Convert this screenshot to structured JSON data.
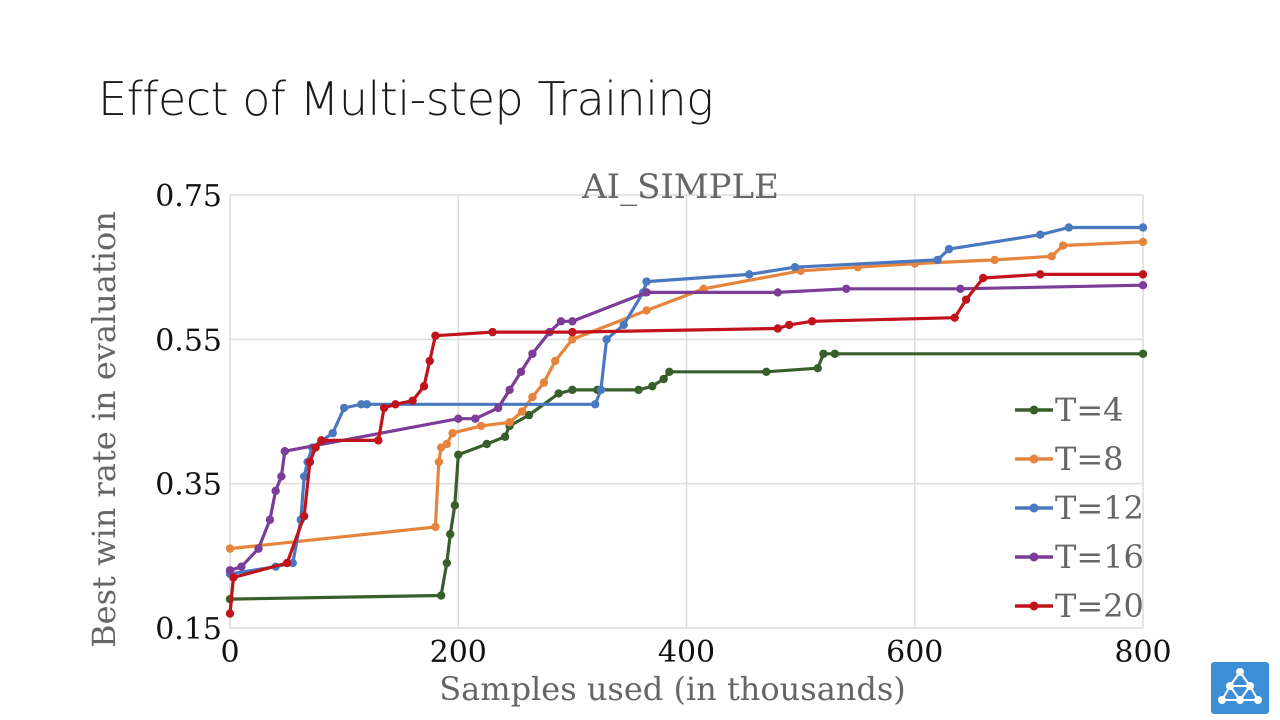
{
  "slide": {
    "title": "Effect of Multi-step Training"
  },
  "logo": {
    "icon": "network-logo-icon",
    "color": "#3c8fd6"
  },
  "chart_data": {
    "type": "line",
    "title": "AI_SIMPLE",
    "xlabel": "Samples used (in thousands)",
    "ylabel": "Best win rate in evaluation",
    "xlim": [
      0,
      800
    ],
    "ylim": [
      0.15,
      0.75
    ],
    "xticks": [
      0,
      200,
      400,
      600,
      800
    ],
    "xtick_labels": [
      "0",
      "200",
      "400",
      "600",
      "800"
    ],
    "yticks": [
      0.15,
      0.35,
      0.55,
      0.75
    ],
    "ytick_labels": [
      "0.15",
      "0.35",
      "0.55",
      "0.75"
    ],
    "grid": true,
    "legend_position": "bottom-right",
    "series": [
      {
        "name": "T=4",
        "color": "#375e2b",
        "x": [
          0,
          185,
          190,
          193,
          197,
          200,
          225,
          241,
          245,
          262,
          288,
          300,
          322,
          358,
          370,
          380,
          385,
          470,
          515,
          520,
          530,
          800
        ],
        "y": [
          0.19,
          0.195,
          0.24,
          0.28,
          0.32,
          0.39,
          0.405,
          0.415,
          0.43,
          0.445,
          0.475,
          0.48,
          0.48,
          0.48,
          0.485,
          0.495,
          0.505,
          0.505,
          0.51,
          0.53,
          0.53,
          0.53
        ]
      },
      {
        "name": "T=8",
        "color": "#e5853d",
        "x": [
          0,
          180,
          183,
          185,
          190,
          195,
          220,
          245,
          256,
          265,
          275,
          285,
          300,
          365,
          415,
          500,
          550,
          600,
          670,
          720,
          730,
          800
        ],
        "y": [
          0.26,
          0.29,
          0.38,
          0.4,
          0.405,
          0.42,
          0.43,
          0.435,
          0.45,
          0.47,
          0.49,
          0.52,
          0.55,
          0.59,
          0.62,
          0.645,
          0.65,
          0.655,
          0.66,
          0.665,
          0.68,
          0.685
        ]
      },
      {
        "name": "T=12",
        "color": "#4a78c0",
        "x": [
          0,
          40,
          55,
          62,
          65,
          68,
          72,
          90,
          100,
          115,
          120,
          320,
          325,
          330,
          345,
          362,
          365,
          455,
          495,
          620,
          630,
          710,
          735,
          800
        ],
        "y": [
          0.225,
          0.235,
          0.24,
          0.3,
          0.36,
          0.38,
          0.4,
          0.42,
          0.455,
          0.46,
          0.46,
          0.46,
          0.48,
          0.55,
          0.57,
          0.615,
          0.63,
          0.64,
          0.65,
          0.66,
          0.675,
          0.695,
          0.705,
          0.705
        ]
      },
      {
        "name": "T=16",
        "color": "#7b3d97",
        "x": [
          0,
          10,
          25,
          35,
          40,
          45,
          48,
          200,
          215,
          235,
          245,
          255,
          265,
          280,
          290,
          300,
          365,
          480,
          540,
          640,
          800
        ],
        "y": [
          0.23,
          0.235,
          0.26,
          0.3,
          0.34,
          0.36,
          0.395,
          0.44,
          0.44,
          0.455,
          0.48,
          0.505,
          0.53,
          0.56,
          0.575,
          0.575,
          0.615,
          0.615,
          0.62,
          0.62,
          0.625
        ]
      },
      {
        "name": "T=20",
        "color": "#c1131b",
        "x": [
          0,
          3,
          50,
          65,
          70,
          75,
          80,
          130,
          135,
          145,
          160,
          170,
          175,
          180,
          230,
          300,
          480,
          490,
          510,
          635,
          645,
          660,
          710,
          800
        ],
        "y": [
          0.17,
          0.22,
          0.24,
          0.305,
          0.38,
          0.4,
          0.41,
          0.41,
          0.455,
          0.46,
          0.465,
          0.485,
          0.52,
          0.555,
          0.56,
          0.56,
          0.565,
          0.57,
          0.575,
          0.58,
          0.605,
          0.635,
          0.64,
          0.64
        ]
      }
    ]
  }
}
